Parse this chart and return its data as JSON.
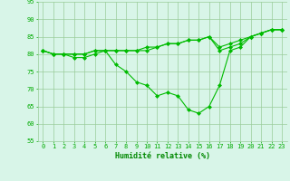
{
  "x": [
    0,
    1,
    2,
    3,
    4,
    5,
    6,
    7,
    8,
    9,
    10,
    11,
    12,
    13,
    14,
    15,
    16,
    17,
    18,
    19,
    20,
    21,
    22,
    23
  ],
  "line1": [
    81,
    80,
    80,
    80,
    80,
    81,
    81,
    81,
    81,
    81,
    81,
    82,
    83,
    83,
    84,
    84,
    85,
    81,
    82,
    83,
    85,
    86,
    87,
    87
  ],
  "line2": [
    81,
    80,
    80,
    80,
    80,
    81,
    81,
    81,
    81,
    81,
    82,
    82,
    83,
    83,
    84,
    84,
    85,
    82,
    83,
    84,
    85,
    86,
    87,
    87
  ],
  "line3": [
    81,
    80,
    80,
    79,
    79,
    80,
    81,
    77,
    75,
    72,
    71,
    68,
    69,
    68,
    64,
    63,
    65,
    71,
    81,
    82,
    85,
    86,
    87,
    87
  ],
  "xlabel": "Humidité relative (%)",
  "ylim": [
    55,
    95
  ],
  "xlim": [
    -0.5,
    23.5
  ],
  "yticks": [
    55,
    60,
    65,
    70,
    75,
    80,
    85,
    90,
    95
  ],
  "xticks": [
    0,
    1,
    2,
    3,
    4,
    5,
    6,
    7,
    8,
    9,
    10,
    11,
    12,
    13,
    14,
    15,
    16,
    17,
    18,
    19,
    20,
    21,
    22,
    23
  ],
  "line_color": "#00BB00",
  "bg_color": "#D8F5E8",
  "grid_color": "#99CC99",
  "marker": "D",
  "markersize": 2.0,
  "linewidth": 0.8,
  "xlabel_color": "#008800",
  "tick_color": "#00AA00",
  "xlabel_fontsize": 6,
  "tick_fontsize": 5,
  "figwidth": 3.2,
  "figheight": 2.0,
  "dpi": 100
}
